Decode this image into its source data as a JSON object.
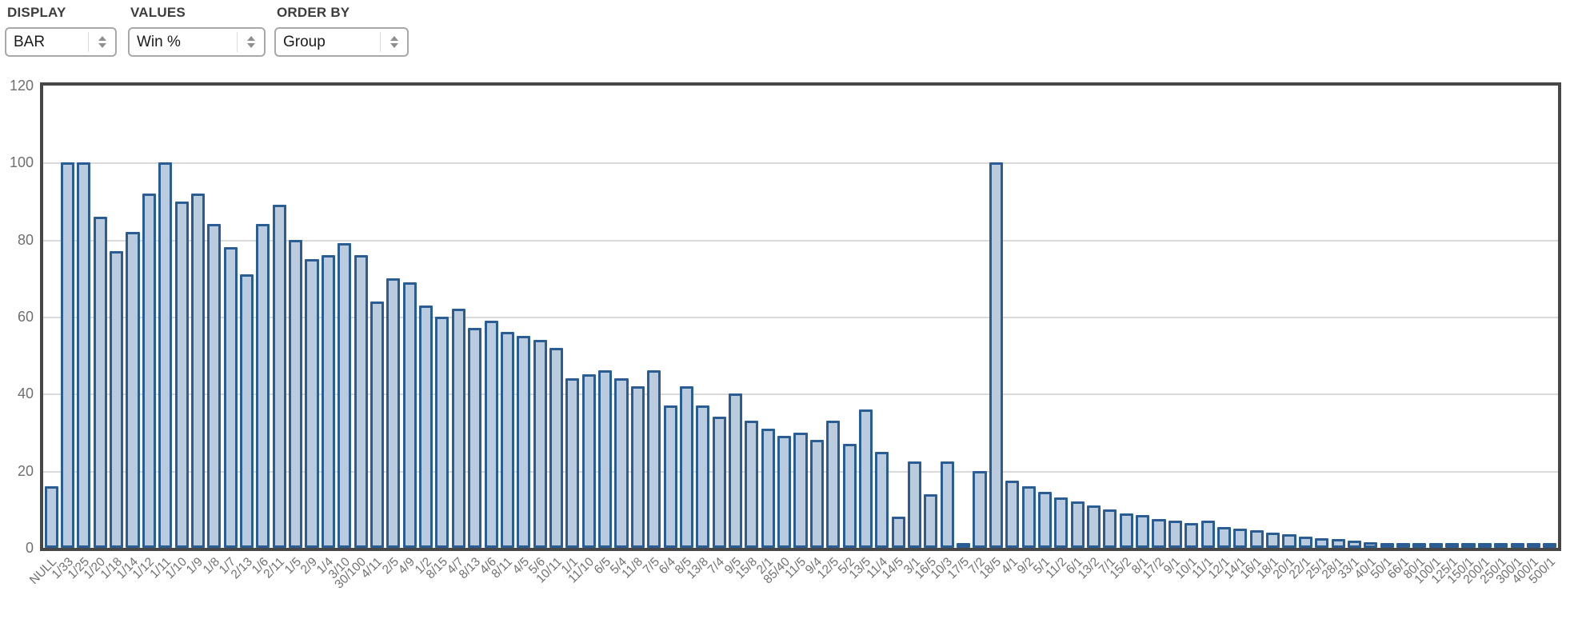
{
  "controls": {
    "display": {
      "label": "DISPLAY",
      "value": "BAR"
    },
    "values": {
      "label": "VALUES",
      "value": "Win %"
    },
    "order_by": {
      "label": "ORDER BY",
      "value": "Group"
    }
  },
  "colors": {
    "bar_fill": "#b9cbdd",
    "bar_border": "#2a5d94",
    "chart_border": "#474747",
    "gridline": "#dadada",
    "tick_text": "#6f6f6f",
    "control_label_text": "#3d3d3d"
  },
  "chart_data": {
    "type": "bar",
    "title": "",
    "xlabel": "",
    "ylabel": "Win %",
    "ylim": [
      0,
      120
    ],
    "yticks": [
      0,
      20,
      40,
      60,
      80,
      100,
      120
    ],
    "grid": "horizontal",
    "legend": "none",
    "categories": [
      "NULL",
      "1/33",
      "1/25",
      "1/20",
      "1/18",
      "1/14",
      "1/12",
      "1/11",
      "1/10",
      "1/9",
      "1/8",
      "1/7",
      "2/13",
      "1/6",
      "2/11",
      "1/5",
      "2/9",
      "1/4",
      "3/10",
      "30/100",
      "4/11",
      "2/5",
      "4/9",
      "1/2",
      "8/15",
      "4/7",
      "8/13",
      "4/6",
      "8/11",
      "4/5",
      "5/6",
      "10/11",
      "1/1",
      "11/10",
      "6/5",
      "5/4",
      "11/8",
      "7/5",
      "6/4",
      "8/5",
      "13/8",
      "7/4",
      "9/5",
      "15/8",
      "2/1",
      "85/40",
      "11/5",
      "9/4",
      "12/5",
      "5/2",
      "13/5",
      "11/4",
      "14/5",
      "3/1",
      "16/5",
      "10/3",
      "17/5",
      "7/2",
      "18/5",
      "4/1",
      "9/2",
      "5/1",
      "11/2",
      "6/1",
      "13/2",
      "7/1",
      "15/2",
      "8/1",
      "17/2",
      "9/1",
      "10/1",
      "11/1",
      "12/1",
      "14/1",
      "16/1",
      "18/1",
      "20/1",
      "22/1",
      "25/1",
      "28/1",
      "33/1",
      "40/1",
      "50/1",
      "66/1",
      "80/1",
      "100/1",
      "125/1",
      "150/1",
      "200/1",
      "250/1",
      "300/1",
      "400/1",
      "500/1"
    ],
    "values": [
      16,
      100,
      100,
      86,
      77,
      82,
      92,
      100,
      90,
      92,
      84,
      78,
      71,
      84,
      89,
      80,
      75,
      76,
      79,
      76,
      64,
      70,
      69,
      63,
      60,
      62,
      57,
      59,
      56,
      55,
      54,
      52,
      44,
      45,
      46,
      44,
      42,
      46,
      37,
      42,
      37,
      34,
      40,
      33,
      31,
      29,
      30,
      28,
      33,
      27,
      36,
      25,
      8,
      22.5,
      14,
      22.5,
      0.5,
      20,
      100,
      17.5,
      16,
      14.5,
      13,
      12,
      11,
      10,
      9,
      8.5,
      7.5,
      7,
      6.5,
      7,
      5.5,
      5,
      4.5,
      4,
      3.5,
      3,
      2.5,
      2.3,
      1.8,
      1.4,
      1,
      1.2,
      0.7,
      0.5,
      0.4,
      0.5,
      0.3,
      0.3,
      0.25,
      0.2,
      0.2
    ]
  }
}
